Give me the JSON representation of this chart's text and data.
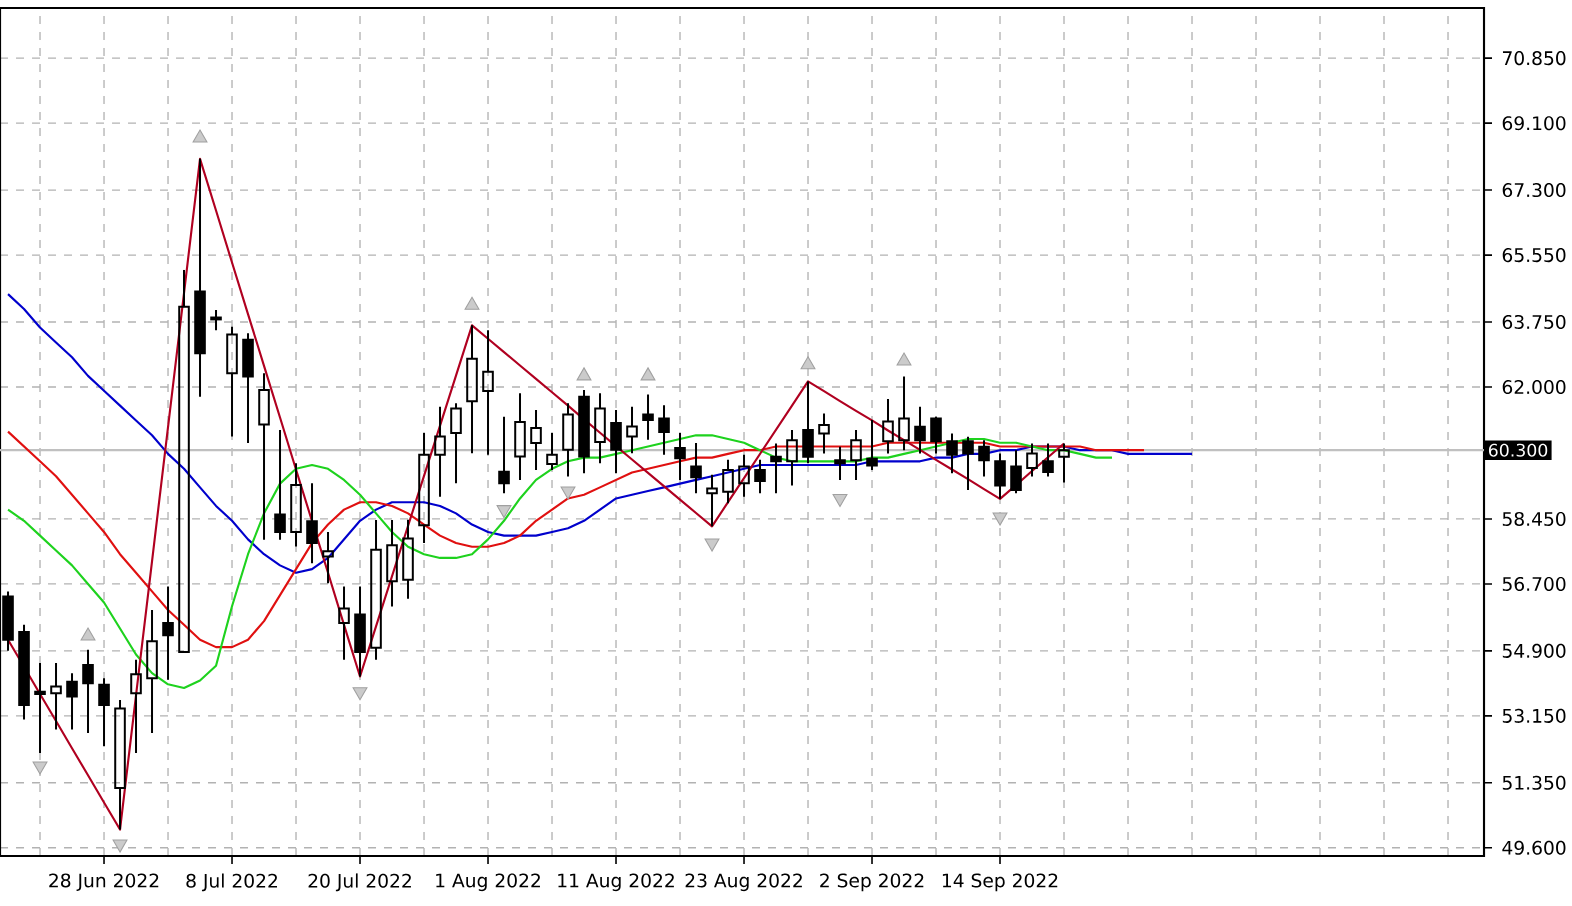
{
  "chart_data": {
    "type": "candlestick",
    "categories": [
      null,
      null,
      null,
      null,
      null,
      null,
      "28 Jun 2022",
      null,
      null,
      null,
      null,
      null,
      null,
      null,
      "8 Jul 2022",
      null,
      null,
      null,
      null,
      null,
      null,
      null,
      "20 Jul 2022",
      null,
      null,
      null,
      null,
      null,
      null,
      null,
      "1 Aug 2022",
      null,
      null,
      null,
      null,
      null,
      null,
      null,
      "11 Aug 2022",
      null,
      null,
      null,
      null,
      null,
      null,
      null,
      "23 Aug 2022",
      null,
      null,
      null,
      null,
      null,
      null,
      null,
      "2 Sep 2022",
      null,
      null,
      null,
      null,
      null,
      null,
      null,
      "14 Sep 2022",
      null,
      null,
      null,
      null,
      null,
      null,
      null,
      null,
      null,
      null,
      null,
      null
    ],
    "ohlc": [
      [
        56.36,
        56.5,
        54.9,
        55.2
      ],
      [
        55.41,
        55.6,
        53.05,
        53.44
      ],
      [
        53.8,
        54.57,
        52.15,
        53.74
      ],
      [
        53.76,
        54.57,
        52.78,
        53.94
      ],
      [
        54.07,
        54.3,
        52.78,
        53.67
      ],
      [
        54.52,
        54.93,
        52.69,
        54.03
      ],
      [
        53.99,
        54.16,
        52.33,
        53.44
      ],
      [
        51.21,
        53.58,
        50.09,
        53.35
      ],
      [
        53.76,
        54.66,
        52.15,
        54.27
      ],
      [
        54.16,
        56.0,
        52.69,
        55.16
      ],
      [
        55.65,
        56.63,
        54.12,
        55.32
      ],
      [
        54.87,
        65.15,
        54.87,
        64.16
      ],
      [
        64.57,
        68.14,
        61.74,
        62.91
      ],
      [
        63.87,
        64.07,
        63.53,
        63.82
      ],
      [
        62.37,
        63.62,
        60.67,
        63.41
      ],
      [
        63.27,
        63.45,
        60.49,
        62.28
      ],
      [
        60.99,
        62.37,
        57.89,
        61.92
      ],
      [
        58.57,
        60.84,
        57.89,
        58.1
      ],
      [
        58.1,
        59.95,
        57.71,
        59.36
      ],
      [
        58.39,
        59.41,
        57.26,
        57.8
      ],
      [
        57.44,
        58.1,
        56.72,
        57.58
      ],
      [
        55.65,
        56.63,
        54.66,
        56.04
      ],
      [
        55.88,
        56.63,
        54.21,
        54.87
      ],
      [
        54.98,
        58.42,
        54.66,
        57.62
      ],
      [
        56.77,
        58.42,
        56.09,
        57.74
      ],
      [
        56.81,
        58.43,
        56.3,
        57.92
      ],
      [
        58.28,
        60.76,
        57.8,
        60.18
      ],
      [
        60.18,
        61.47,
        59.05,
        60.67
      ],
      [
        60.76,
        61.56,
        59.41,
        61.42
      ],
      [
        61.62,
        63.66,
        60.22,
        62.76
      ],
      [
        61.89,
        63.53,
        60.18,
        62.41
      ],
      [
        59.72,
        61.2,
        59.14,
        59.41
      ],
      [
        60.13,
        61.83,
        59.5,
        61.06
      ],
      [
        60.49,
        61.38,
        59.77,
        60.9
      ],
      [
        59.93,
        60.76,
        59.77,
        60.18
      ],
      [
        60.31,
        61.56,
        59.59,
        61.26
      ],
      [
        61.74,
        61.92,
        59.68,
        60.13
      ],
      [
        60.52,
        61.83,
        59.95,
        61.42
      ],
      [
        61.03,
        61.38,
        59.68,
        60.31
      ],
      [
        60.67,
        61.47,
        60.22,
        60.94
      ],
      [
        61.26,
        61.8,
        60.58,
        61.11
      ],
      [
        61.15,
        61.51,
        60.18,
        60.79
      ],
      [
        60.36,
        60.76,
        59.5,
        60.08
      ],
      [
        59.86,
        60.49,
        59.14,
        59.57
      ],
      [
        59.14,
        59.64,
        58.25,
        59.27
      ],
      [
        59.18,
        60.04,
        58.87,
        59.77
      ],
      [
        59.41,
        60.18,
        59.05,
        59.86
      ],
      [
        59.77,
        60.04,
        59.14,
        59.47
      ],
      [
        60.12,
        60.48,
        59.14,
        60.0
      ],
      [
        60.0,
        60.84,
        59.35,
        60.57
      ],
      [
        60.84,
        62.15,
        59.95,
        60.12
      ],
      [
        60.75,
        61.29,
        60.21,
        60.98
      ],
      [
        60.03,
        60.39,
        59.5,
        59.95
      ],
      [
        60.03,
        60.84,
        59.5,
        60.57
      ],
      [
        60.07,
        61.11,
        59.77,
        59.89
      ],
      [
        60.54,
        61.68,
        60.21,
        61.07
      ],
      [
        60.57,
        62.28,
        60.3,
        61.15
      ],
      [
        60.93,
        61.47,
        60.21,
        60.57
      ],
      [
        61.15,
        61.2,
        60.21,
        60.54
      ],
      [
        60.54,
        60.75,
        59.68,
        60.18
      ],
      [
        60.54,
        60.66,
        59.23,
        60.21
      ],
      [
        60.39,
        60.57,
        59.59,
        60.03
      ],
      [
        60.0,
        60.21,
        58.99,
        59.35
      ],
      [
        59.86,
        60.3,
        59.14,
        59.23
      ],
      [
        59.82,
        60.48,
        59.59,
        60.21
      ],
      [
        60.0,
        60.48,
        59.59,
        59.71
      ],
      [
        60.12,
        60.48,
        59.43,
        60.3
      ],
      null,
      null,
      null,
      null,
      null,
      null,
      null,
      null
    ],
    "series": [
      {
        "type": "line",
        "color": "#0000cc",
        "values": [
          64.5,
          64.1,
          63.6,
          63.2,
          62.8,
          62.3,
          61.9,
          61.5,
          61.1,
          60.7,
          60.2,
          59.8,
          59.3,
          58.8,
          58.4,
          57.9,
          57.5,
          57.2,
          57.0,
          57.1,
          57.4,
          57.9,
          58.4,
          58.7,
          58.9,
          58.9,
          58.9,
          58.8,
          58.6,
          58.3,
          58.1,
          58.0,
          58.0,
          58.0,
          58.1,
          58.2,
          58.4,
          58.7,
          59.0,
          59.1,
          59.2,
          59.3,
          59.4,
          59.5,
          59.6,
          59.7,
          59.8,
          59.9,
          59.9,
          59.9,
          59.9,
          59.9,
          59.9,
          59.9,
          60.0,
          60.0,
          60.0,
          60.0,
          60.1,
          60.1,
          60.2,
          60.2,
          60.3,
          60.3,
          60.4,
          60.4,
          60.4,
          60.3,
          60.3,
          60.3,
          60.2,
          60.2,
          60.2,
          60.2,
          60.2
        ]
      },
      {
        "type": "line",
        "color": "#e01010",
        "values": [
          60.8,
          60.4,
          60.0,
          59.6,
          59.1,
          58.6,
          58.1,
          57.5,
          57.0,
          56.5,
          56.0,
          55.6,
          55.2,
          55.0,
          55.0,
          55.2,
          55.7,
          56.4,
          57.1,
          57.8,
          58.3,
          58.7,
          58.9,
          58.9,
          58.8,
          58.6,
          58.3,
          58.0,
          57.8,
          57.7,
          57.7,
          57.8,
          58.0,
          58.4,
          58.7,
          59.0,
          59.1,
          59.3,
          59.5,
          59.7,
          59.8,
          59.9,
          60.0,
          60.1,
          60.1,
          60.2,
          60.3,
          60.3,
          60.4,
          60.4,
          60.4,
          60.4,
          60.4,
          60.4,
          60.4,
          60.5,
          60.5,
          60.5,
          60.5,
          60.5,
          60.5,
          60.5,
          60.4,
          60.4,
          60.4,
          60.4,
          60.4,
          60.4,
          60.3,
          60.3,
          60.3,
          60.3,
          null,
          null,
          null
        ]
      },
      {
        "type": "line",
        "color": "#1ed21e",
        "values": [
          58.7,
          58.4,
          58.0,
          57.6,
          57.2,
          56.7,
          56.2,
          55.5,
          54.8,
          54.3,
          54.0,
          53.9,
          54.1,
          54.5,
          56.1,
          57.5,
          58.6,
          59.4,
          59.8,
          59.9,
          59.8,
          59.5,
          59.1,
          58.6,
          58.1,
          57.7,
          57.5,
          57.4,
          57.4,
          57.5,
          57.9,
          58.4,
          59.0,
          59.5,
          59.8,
          60.0,
          60.1,
          60.1,
          60.2,
          60.3,
          60.4,
          60.5,
          60.6,
          60.7,
          60.7,
          60.6,
          60.5,
          60.3,
          60.1,
          60.0,
          60.0,
          60.0,
          60.0,
          60.0,
          60.1,
          60.1,
          60.2,
          60.3,
          60.4,
          60.5,
          60.6,
          60.6,
          60.5,
          60.5,
          60.4,
          60.3,
          60.3,
          60.2,
          60.1,
          60.1,
          null,
          null,
          null,
          null,
          null
        ]
      },
      {
        "type": "line",
        "color": "#b00020",
        "values": [
          55.2,
          54.47,
          53.74,
          53.01,
          52.28,
          51.55,
          50.82,
          50.09,
          53.7,
          57.31,
          60.92,
          64.53,
          68.14,
          66.75,
          65.35,
          63.96,
          62.57,
          61.18,
          59.78,
          58.39,
          57.0,
          55.6,
          54.21,
          55.56,
          56.91,
          58.26,
          59.61,
          60.96,
          62.31,
          63.66,
          63.3,
          62.94,
          62.58,
          62.22,
          61.86,
          61.5,
          61.13,
          60.77,
          60.41,
          60.05,
          59.69,
          59.33,
          58.97,
          58.61,
          58.25,
          58.9,
          59.55,
          60.2,
          60.85,
          61.5,
          62.15,
          61.89,
          61.62,
          61.36,
          61.1,
          60.83,
          60.57,
          60.31,
          60.04,
          59.78,
          59.52,
          59.25,
          58.99,
          59.36,
          59.74,
          60.11,
          60.48,
          null,
          null,
          null,
          null,
          null,
          null,
          null,
          null
        ]
      },
      {
        "type": "scatter",
        "color": "#a0a0a0",
        "marker": "triangle",
        "values": [
          null,
          null,
          null,
          null,
          null,
          55.3,
          null,
          null,
          null,
          null,
          null,
          null,
          68.7,
          null,
          null,
          null,
          null,
          null,
          null,
          null,
          null,
          null,
          null,
          null,
          null,
          null,
          null,
          null,
          null,
          64.2,
          null,
          null,
          null,
          null,
          null,
          null,
          62.3,
          null,
          null,
          null,
          62.3,
          null,
          null,
          null,
          null,
          null,
          null,
          null,
          null,
          null,
          62.6,
          null,
          null,
          null,
          null,
          null,
          62.7,
          null,
          null,
          null,
          null,
          null,
          null,
          null,
          null,
          null,
          null,
          null,
          null,
          null,
          null,
          null,
          null,
          null,
          null
        ]
      },
      {
        "type": "scatter",
        "color": "#a0a0a0",
        "marker": "triangle",
        "values": [
          null,
          null,
          51.8,
          null,
          null,
          null,
          null,
          49.7,
          null,
          null,
          null,
          null,
          null,
          null,
          null,
          null,
          null,
          null,
          null,
          null,
          null,
          null,
          53.8,
          null,
          null,
          null,
          null,
          null,
          null,
          null,
          null,
          58.7,
          null,
          null,
          null,
          59.2,
          null,
          null,
          null,
          null,
          null,
          null,
          null,
          null,
          57.8,
          null,
          null,
          null,
          null,
          null,
          null,
          null,
          59.0,
          null,
          null,
          null,
          null,
          null,
          null,
          null,
          null,
          null,
          58.5,
          null,
          null,
          null,
          null,
          null,
          null,
          null,
          null,
          null,
          null,
          null,
          null
        ]
      }
    ],
    "ylim": [
      49.38,
      72.2
    ],
    "yticks": [
      {
        "value": 49.6,
        "label": "49.600"
      },
      {
        "value": 51.35,
        "label": "51.350"
      },
      {
        "value": 53.15,
        "label": "53.150"
      },
      {
        "value": 54.9,
        "label": "54.900"
      },
      {
        "value": 56.7,
        "label": "56.700"
      },
      {
        "value": 58.45,
        "label": "58.450"
      },
      {
        "value": 62.0,
        "label": "62.000"
      },
      {
        "value": 63.75,
        "label": "63.750"
      },
      {
        "value": 65.55,
        "label": "65.550"
      },
      {
        "value": 67.3,
        "label": "67.300"
      },
      {
        "value": 69.1,
        "label": "69.100"
      },
      {
        "value": 70.85,
        "label": "70.850"
      }
    ],
    "grid": true,
    "ref_lines": [
      {
        "axis": "y",
        "value": 60.3,
        "label": "60.300",
        "color": "#c0c0c0"
      }
    ]
  }
}
